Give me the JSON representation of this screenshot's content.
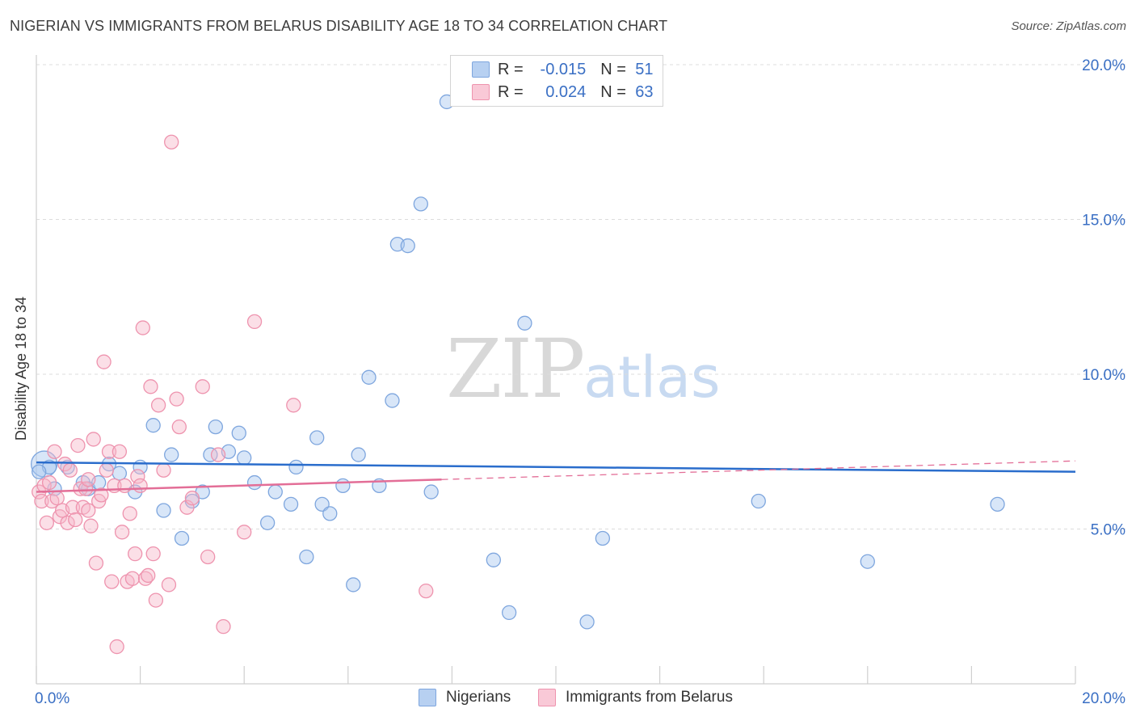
{
  "title": "NIGERIAN VS IMMIGRANTS FROM BELARUS DISABILITY AGE 18 TO 34 CORRELATION CHART",
  "source": "Source: ZipAtlas.com",
  "watermark": {
    "zip": "ZIP",
    "atlas": "atlas"
  },
  "legend": {
    "r_label": "R =",
    "n_label": "N =",
    "series": [
      {
        "name": "Nigerians",
        "r": "-0.015",
        "n": "51",
        "color": "#a9c7ef",
        "edge": "#7ea6de"
      },
      {
        "name": "Immigrants from Belarus",
        "r": "0.024",
        "n": "63",
        "color": "#f6b7c9",
        "edge": "#ee93ae"
      }
    ]
  },
  "chart_data": {
    "type": "scatter",
    "title": "NIGERIAN VS IMMIGRANTS FROM BELARUS DISABILITY AGE 18 TO 34 CORRELATION CHART",
    "xlabel": "",
    "ylabel": "Disability Age 18 to 34",
    "xlim": [
      0,
      20
    ],
    "ylim": [
      0,
      20
    ],
    "x_tick_labels": [
      "0.0%",
      "20.0%"
    ],
    "y_ticks": [
      5,
      10,
      15,
      20
    ],
    "y_tick_labels": [
      "5.0%",
      "10.0%",
      "15.0%",
      "20.0%"
    ],
    "grid": true,
    "series": [
      {
        "name": "Nigerians",
        "color": "#a9c7ef",
        "edge": "#7ea6de",
        "trend": {
          "x": [
            0,
            20
          ],
          "y": [
            7.15,
            6.85
          ],
          "color": "#2a6dcc"
        },
        "points": [
          {
            "x": 0.15,
            "y": 7.1,
            "big": true
          },
          {
            "x": 0.25,
            "y": 7.0
          },
          {
            "x": 0.35,
            "y": 6.3
          },
          {
            "x": 0.6,
            "y": 7.0
          },
          {
            "x": 0.9,
            "y": 6.5
          },
          {
            "x": 1.0,
            "y": 6.3
          },
          {
            "x": 1.2,
            "y": 6.5
          },
          {
            "x": 1.4,
            "y": 7.1
          },
          {
            "x": 1.6,
            "y": 6.8
          },
          {
            "x": 1.9,
            "y": 6.2
          },
          {
            "x": 2.0,
            "y": 7.0
          },
          {
            "x": 2.25,
            "y": 8.35
          },
          {
            "x": 2.45,
            "y": 5.6
          },
          {
            "x": 2.6,
            "y": 7.4
          },
          {
            "x": 2.8,
            "y": 4.7
          },
          {
            "x": 3.0,
            "y": 5.9
          },
          {
            "x": 3.2,
            "y": 6.2
          },
          {
            "x": 3.35,
            "y": 7.4
          },
          {
            "x": 3.45,
            "y": 8.3
          },
          {
            "x": 3.7,
            "y": 7.5
          },
          {
            "x": 3.9,
            "y": 8.1
          },
          {
            "x": 4.0,
            "y": 7.3
          },
          {
            "x": 4.2,
            "y": 6.5
          },
          {
            "x": 4.45,
            "y": 5.2
          },
          {
            "x": 4.6,
            "y": 6.2
          },
          {
            "x": 4.9,
            "y": 5.8
          },
          {
            "x": 5.0,
            "y": 7.0
          },
          {
            "x": 5.2,
            "y": 4.1
          },
          {
            "x": 5.4,
            "y": 7.95
          },
          {
            "x": 5.5,
            "y": 5.8
          },
          {
            "x": 5.65,
            "y": 5.5
          },
          {
            "x": 5.9,
            "y": 6.4
          },
          {
            "x": 6.1,
            "y": 3.2
          },
          {
            "x": 6.2,
            "y": 7.4
          },
          {
            "x": 6.4,
            "y": 9.9
          },
          {
            "x": 6.6,
            "y": 6.4
          },
          {
            "x": 6.85,
            "y": 9.15
          },
          {
            "x": 6.95,
            "y": 14.2
          },
          {
            "x": 7.15,
            "y": 14.15
          },
          {
            "x": 7.4,
            "y": 15.5
          },
          {
            "x": 7.6,
            "y": 6.2
          },
          {
            "x": 7.9,
            "y": 18.8
          },
          {
            "x": 8.8,
            "y": 4.0
          },
          {
            "x": 9.1,
            "y": 2.3
          },
          {
            "x": 9.4,
            "y": 11.65
          },
          {
            "x": 10.6,
            "y": 2.0
          },
          {
            "x": 10.9,
            "y": 4.7
          },
          {
            "x": 13.9,
            "y": 5.9
          },
          {
            "x": 16.0,
            "y": 3.95
          },
          {
            "x": 18.5,
            "y": 5.8
          },
          {
            "x": 0.05,
            "y": 6.85
          }
        ]
      },
      {
        "name": "Immigrants from Belarus",
        "color": "#f6b7c9",
        "edge": "#ee93ae",
        "trend": {
          "x": [
            0,
            7.8
          ],
          "y": [
            6.2,
            6.6
          ],
          "color": "#e36e97",
          "dashed": {
            "x": [
              7.8,
              20
            ],
            "y": [
              6.6,
              7.2
            ]
          }
        },
        "points": [
          {
            "x": 0.05,
            "y": 6.2
          },
          {
            "x": 0.1,
            "y": 5.9
          },
          {
            "x": 0.15,
            "y": 6.4
          },
          {
            "x": 0.2,
            "y": 5.2
          },
          {
            "x": 0.3,
            "y": 5.9
          },
          {
            "x": 0.35,
            "y": 7.5
          },
          {
            "x": 0.4,
            "y": 6.0
          },
          {
            "x": 0.45,
            "y": 5.4
          },
          {
            "x": 0.5,
            "y": 5.6
          },
          {
            "x": 0.55,
            "y": 7.1
          },
          {
            "x": 0.6,
            "y": 5.2
          },
          {
            "x": 0.65,
            "y": 6.9
          },
          {
            "x": 0.7,
            "y": 5.7
          },
          {
            "x": 0.8,
            "y": 7.7
          },
          {
            "x": 0.85,
            "y": 6.3
          },
          {
            "x": 0.9,
            "y": 5.7
          },
          {
            "x": 0.95,
            "y": 6.3
          },
          {
            "x": 1.0,
            "y": 5.6
          },
          {
            "x": 1.05,
            "y": 5.1
          },
          {
            "x": 1.1,
            "y": 7.9
          },
          {
            "x": 1.15,
            "y": 3.9
          },
          {
            "x": 1.2,
            "y": 5.9
          },
          {
            "x": 1.25,
            "y": 6.1
          },
          {
            "x": 1.3,
            "y": 10.4
          },
          {
            "x": 1.35,
            "y": 6.9
          },
          {
            "x": 1.4,
            "y": 7.5
          },
          {
            "x": 1.45,
            "y": 3.3
          },
          {
            "x": 1.5,
            "y": 6.4
          },
          {
            "x": 1.55,
            "y": 1.2
          },
          {
            "x": 1.6,
            "y": 7.5
          },
          {
            "x": 1.65,
            "y": 4.9
          },
          {
            "x": 1.7,
            "y": 6.4
          },
          {
            "x": 1.75,
            "y": 3.3
          },
          {
            "x": 1.8,
            "y": 5.5
          },
          {
            "x": 1.85,
            "y": 3.4
          },
          {
            "x": 1.9,
            "y": 4.2
          },
          {
            "x": 1.95,
            "y": 6.7
          },
          {
            "x": 2.05,
            "y": 11.5
          },
          {
            "x": 2.1,
            "y": 3.4
          },
          {
            "x": 2.15,
            "y": 3.5
          },
          {
            "x": 2.2,
            "y": 9.6
          },
          {
            "x": 2.3,
            "y": 2.7
          },
          {
            "x": 2.35,
            "y": 9.0
          },
          {
            "x": 2.45,
            "y": 6.9
          },
          {
            "x": 2.55,
            "y": 3.2
          },
          {
            "x": 2.6,
            "y": 17.5
          },
          {
            "x": 2.7,
            "y": 9.2
          },
          {
            "x": 2.75,
            "y": 8.3
          },
          {
            "x": 2.9,
            "y": 5.7
          },
          {
            "x": 3.0,
            "y": 6.0
          },
          {
            "x": 3.2,
            "y": 9.6
          },
          {
            "x": 3.3,
            "y": 4.1
          },
          {
            "x": 3.5,
            "y": 7.4
          },
          {
            "x": 3.6,
            "y": 1.85
          },
          {
            "x": 4.0,
            "y": 4.9
          },
          {
            "x": 4.2,
            "y": 11.7
          },
          {
            "x": 4.95,
            "y": 9.0
          },
          {
            "x": 7.5,
            "y": 3.0
          },
          {
            "x": 2.25,
            "y": 4.2
          },
          {
            "x": 1.0,
            "y": 6.6
          },
          {
            "x": 0.25,
            "y": 6.5
          },
          {
            "x": 0.75,
            "y": 5.3
          },
          {
            "x": 2.0,
            "y": 6.4
          }
        ]
      }
    ]
  }
}
